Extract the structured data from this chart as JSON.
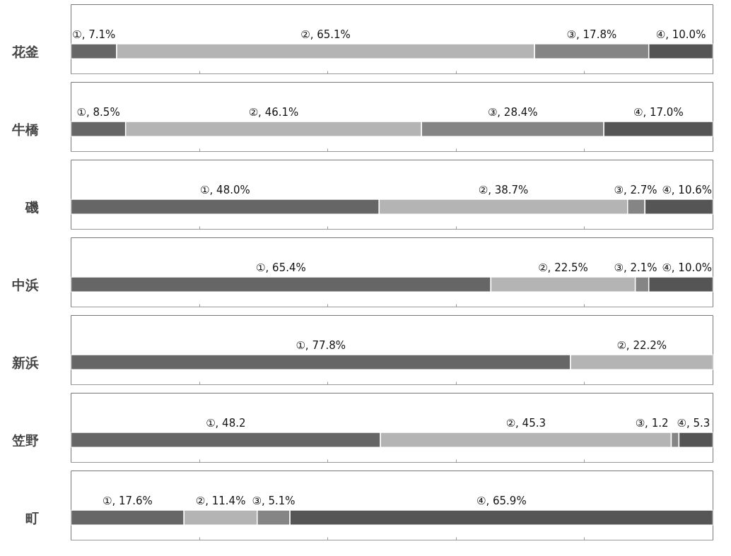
{
  "chart_data": [
    {
      "type": "bar",
      "orientation": "horizontal",
      "stacked": true,
      "categories": [
        "花釜"
      ],
      "xlim": [
        0,
        100
      ],
      "xticks": [
        {
          "value": 20,
          "label": null
        },
        {
          "value": 40,
          "label": null
        },
        {
          "value": 60,
          "label": null
        },
        {
          "value": 80,
          "label": null
        }
      ],
      "tick_labels": "y",
      "grid": false,
      "series": [
        {
          "color": "#666666",
          "values": [
            7.1
          ],
          "value_labels": [
            "①, 7.1%"
          ]
        },
        {
          "color": "#b4b4b4",
          "values": [
            65.1
          ],
          "value_labels": [
            "②, 65.1%"
          ]
        },
        {
          "color": "#858585",
          "values": [
            17.8
          ],
          "value_labels": [
            "③, 17.8%"
          ]
        },
        {
          "color": "#555555",
          "values": [
            10.0
          ],
          "value_labels": [
            "④, 10.0%"
          ]
        }
      ]
    },
    {
      "type": "bar",
      "orientation": "horizontal",
      "stacked": true,
      "categories": [
        "牛橋"
      ],
      "xlim": [
        0,
        100
      ],
      "xticks": [
        {
          "value": 20,
          "label": null
        },
        {
          "value": 40,
          "label": null
        },
        {
          "value": 60,
          "label": null
        },
        {
          "value": 80,
          "label": null
        }
      ],
      "tick_labels": "y",
      "grid": false,
      "series": [
        {
          "color": "#666666",
          "values": [
            8.5
          ],
          "value_labels": [
            "①, 8.5%"
          ]
        },
        {
          "color": "#b4b4b4",
          "values": [
            46.1
          ],
          "value_labels": [
            "②, 46.1%"
          ]
        },
        {
          "color": "#858585",
          "values": [
            28.4
          ],
          "value_labels": [
            "③, 28.4%"
          ]
        },
        {
          "color": "#555555",
          "values": [
            17.0
          ],
          "value_labels": [
            "④, 17.0%"
          ]
        }
      ]
    },
    {
      "type": "bar",
      "orientation": "horizontal",
      "stacked": true,
      "categories": [
        "磯"
      ],
      "xlim": [
        0,
        100
      ],
      "xticks": [
        {
          "value": 20,
          "label": null
        },
        {
          "value": 40,
          "label": null
        },
        {
          "value": 60,
          "label": null
        },
        {
          "value": 80,
          "label": null
        }
      ],
      "tick_labels": "y",
      "grid": false,
      "series": [
        {
          "color": "#666666",
          "values": [
            48.0
          ],
          "value_labels": [
            "①, 48.0%"
          ]
        },
        {
          "color": "#b4b4b4",
          "values": [
            38.7
          ],
          "value_labels": [
            "②, 38.7%"
          ]
        },
        {
          "color": "#858585",
          "values": [
            2.7
          ],
          "value_labels": [
            "③, 2.7%"
          ]
        },
        {
          "color": "#555555",
          "values": [
            10.6
          ],
          "value_labels": [
            "④, 10.6%"
          ]
        }
      ]
    },
    {
      "type": "bar",
      "orientation": "horizontal",
      "stacked": true,
      "categories": [
        "中浜"
      ],
      "xlim": [
        0,
        100
      ],
      "xticks": [
        {
          "value": 20,
          "label": null
        },
        {
          "value": 40,
          "label": null
        },
        {
          "value": 60,
          "label": null
        },
        {
          "value": 80,
          "label": null
        }
      ],
      "tick_labels": "y",
      "grid": false,
      "series": [
        {
          "color": "#666666",
          "values": [
            65.4
          ],
          "value_labels": [
            "①, 65.4%"
          ]
        },
        {
          "color": "#b4b4b4",
          "values": [
            22.5
          ],
          "value_labels": [
            "②, 22.5%"
          ]
        },
        {
          "color": "#858585",
          "values": [
            2.1
          ],
          "value_labels": [
            "③, 2.1%"
          ]
        },
        {
          "color": "#555555",
          "values": [
            10.0
          ],
          "value_labels": [
            "④, 10.0%"
          ]
        }
      ]
    },
    {
      "type": "bar",
      "orientation": "horizontal",
      "stacked": true,
      "categories": [
        "新浜"
      ],
      "xlim": [
        0,
        100
      ],
      "xticks": [
        {
          "value": 20,
          "label": null
        },
        {
          "value": 40,
          "label": null
        },
        {
          "value": 60,
          "label": null
        },
        {
          "value": 80,
          "label": null
        }
      ],
      "tick_labels": "y",
      "grid": false,
      "series": [
        {
          "color": "#666666",
          "values": [
            77.8
          ],
          "value_labels": [
            "①, 77.8%"
          ]
        },
        {
          "color": "#b4b4b4",
          "values": [
            22.2
          ],
          "value_labels": [
            "②, 22.2%"
          ]
        }
      ]
    },
    {
      "type": "bar",
      "orientation": "horizontal",
      "stacked": true,
      "categories": [
        "笠野"
      ],
      "xlim": [
        0,
        100
      ],
      "xticks": [
        {
          "value": 20,
          "label": null
        },
        {
          "value": 40,
          "label": null
        },
        {
          "value": 60,
          "label": null
        },
        {
          "value": 80,
          "label": null
        }
      ],
      "tick_labels": "y",
      "grid": false,
      "series": [
        {
          "color": "#666666",
          "values": [
            48.2
          ],
          "value_labels": [
            "①, 48.2"
          ]
        },
        {
          "color": "#b4b4b4",
          "values": [
            45.3
          ],
          "value_labels": [
            "②, 45.3"
          ]
        },
        {
          "color": "#858585",
          "values": [
            1.2
          ],
          "value_labels": [
            "③, 1.2"
          ]
        },
        {
          "color": "#555555",
          "values": [
            5.3
          ],
          "value_labels": [
            "④, 5.3"
          ]
        }
      ]
    },
    {
      "type": "bar",
      "orientation": "horizontal",
      "stacked": true,
      "categories": [
        "町"
      ],
      "xlim": [
        0,
        100
      ],
      "xticks": [
        {
          "value": 20,
          "label": null
        },
        {
          "value": 40,
          "label": null
        },
        {
          "value": 60,
          "label": null
        },
        {
          "value": 80,
          "label": null
        }
      ],
      "tick_labels": "y",
      "grid": false,
      "series": [
        {
          "color": "#666666",
          "values": [
            17.6
          ],
          "value_labels": [
            "①, 17.6%"
          ]
        },
        {
          "color": "#b4b4b4",
          "values": [
            11.4
          ],
          "value_labels": [
            "②, 11.4%"
          ]
        },
        {
          "color": "#858585",
          "values": [
            5.1
          ],
          "value_labels": [
            "③, 5.1%"
          ]
        },
        {
          "color": "#555555",
          "values": [
            65.9
          ],
          "value_labels": [
            "④, 65.9%"
          ]
        }
      ]
    }
  ]
}
